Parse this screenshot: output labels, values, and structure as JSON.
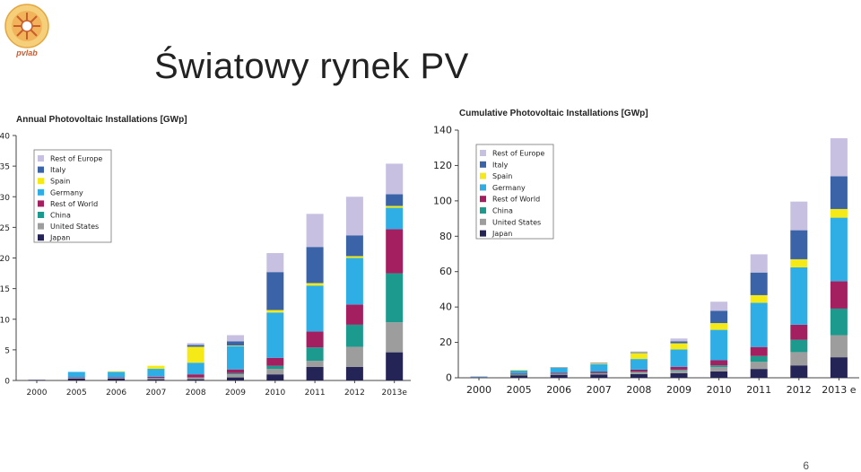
{
  "slide": {
    "title": "Światowy rynek PV",
    "page_number": "6",
    "logo_text": "pvlab"
  },
  "colors": {
    "Rest of Europe": "#c8c0e0",
    "Italy": "#3a63a8",
    "Spain": "#f5ea18",
    "Germany": "#2eaee4",
    "Rest of World": "#a41f5f",
    "China": "#1c9a8e",
    "United States": "#9d9d9d",
    "Japan": "#252457"
  },
  "chart_data": [
    {
      "type": "bar",
      "stacked": true,
      "title": "Annual Photovoltaic Installations [GWp]",
      "categories": [
        "2000",
        "2005",
        "2006",
        "2007",
        "2008",
        "2009",
        "2010",
        "2011",
        "2012",
        "2013e"
      ],
      "ylim": [
        0,
        40
      ],
      "yticks": [
        0,
        5,
        10,
        15,
        20,
        25,
        30,
        35,
        40
      ],
      "legend_position": "top-left",
      "series": [
        {
          "name": "Japan",
          "values": [
            0.1,
            0.3,
            0.3,
            0.2,
            0.2,
            0.5,
            1.0,
            2.2,
            2.2,
            4.6
          ]
        },
        {
          "name": "United States",
          "values": [
            0.0,
            0.1,
            0.1,
            0.2,
            0.3,
            0.5,
            0.9,
            1.0,
            3.3,
            4.9
          ]
        },
        {
          "name": "China",
          "values": [
            0.0,
            0.0,
            0.0,
            0.0,
            0.0,
            0.2,
            0.5,
            2.2,
            3.6,
            8.0
          ]
        },
        {
          "name": "Rest of World",
          "values": [
            0.0,
            0.1,
            0.1,
            0.2,
            0.5,
            0.6,
            1.3,
            2.6,
            3.3,
            7.2
          ]
        },
        {
          "name": "Germany",
          "values": [
            0.0,
            0.9,
            0.9,
            1.3,
            1.9,
            3.8,
            7.4,
            7.5,
            7.6,
            3.5
          ]
        },
        {
          "name": "Spain",
          "values": [
            0.0,
            0.0,
            0.1,
            0.5,
            2.6,
            0.1,
            0.4,
            0.4,
            0.3,
            0.3
          ]
        },
        {
          "name": "Italy",
          "values": [
            0.0,
            0.0,
            0.0,
            0.0,
            0.3,
            0.7,
            6.2,
            5.9,
            3.4,
            1.9
          ]
        },
        {
          "name": "Rest of Europe",
          "values": [
            0.0,
            0.0,
            0.0,
            0.0,
            0.3,
            1.0,
            3.1,
            5.4,
            6.3,
            5.0
          ]
        }
      ],
      "legend": [
        "Rest of Europe",
        "Italy",
        "Spain",
        "Germany",
        "Rest of World",
        "China",
        "United States",
        "Japan"
      ]
    },
    {
      "type": "bar",
      "stacked": true,
      "title": "Cumulative Photovoltaic Installations [GWp]",
      "categories": [
        "2000",
        "2005",
        "2006",
        "2007",
        "2008",
        "2009",
        "2010",
        "2011",
        "2012",
        "2013 e"
      ],
      "ylim": [
        0,
        140
      ],
      "yticks": [
        0,
        20,
        40,
        60,
        80,
        100,
        120,
        140
      ],
      "legend_position": "top-left",
      "series": [
        {
          "name": "Japan",
          "values": [
            0.3,
            1.4,
            1.7,
            1.9,
            2.1,
            2.6,
            3.6,
            5.0,
            7.0,
            11.6
          ]
        },
        {
          "name": "United States",
          "values": [
            0.1,
            0.5,
            0.6,
            0.8,
            1.2,
            1.6,
            2.5,
            4.0,
            7.5,
            12.5
          ]
        },
        {
          "name": "China",
          "values": [
            0.0,
            0.1,
            0.1,
            0.1,
            0.2,
            0.4,
            0.9,
            3.3,
            7.0,
            15.0
          ]
        },
        {
          "name": "Rest of World",
          "values": [
            0.2,
            0.4,
            0.5,
            0.7,
            1.1,
            1.6,
            2.9,
            5.1,
            8.5,
            15.5
          ]
        },
        {
          "name": "Germany",
          "values": [
            0.1,
            1.9,
            2.9,
            4.2,
            6.0,
            9.8,
            17.2,
            25.0,
            32.4,
            35.9
          ]
        },
        {
          "name": "Spain",
          "values": [
            0.0,
            0.1,
            0.1,
            0.6,
            3.4,
            3.5,
            3.8,
            4.3,
            4.6,
            4.9
          ]
        },
        {
          "name": "Italy",
          "values": [
            0.0,
            0.0,
            0.1,
            0.1,
            0.4,
            1.1,
            7.0,
            12.8,
            16.4,
            18.5
          ]
        },
        {
          "name": "Rest of Europe",
          "values": [
            0.0,
            0.0,
            0.1,
            0.2,
            0.5,
            1.6,
            5.1,
            10.3,
            16.2,
            21.5
          ]
        }
      ],
      "legend": [
        "Rest of Europe",
        "Italy",
        "Spain",
        "Germany",
        "Rest of World",
        "China",
        "United States",
        "Japan"
      ]
    }
  ]
}
